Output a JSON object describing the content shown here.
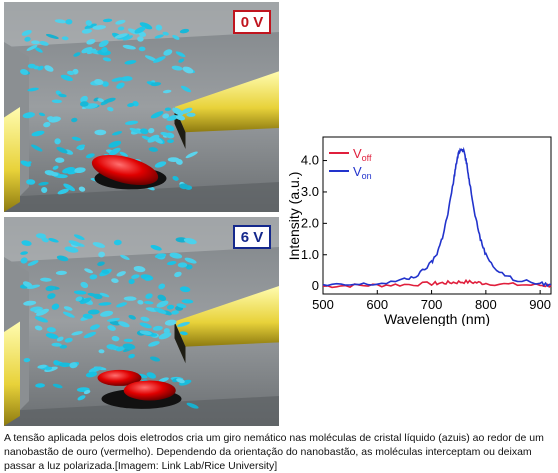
{
  "panels": [
    {
      "voltage_label": "0 V",
      "badge_color": "#c0141e"
    },
    {
      "voltage_label": "6 V",
      "badge_color": "#14288c"
    }
  ],
  "chart_data": {
    "type": "line",
    "xlabel": "Wavelength (nm)",
    "ylabel": "Intensity (a.u.)",
    "xlim": [
      500,
      920
    ],
    "ylim": [
      -0.25,
      4.75
    ],
    "xticks": [
      500,
      600,
      700,
      800,
      900
    ],
    "yticks": [
      0,
      1,
      2,
      3,
      4
    ],
    "ytick_labels": [
      "0",
      "1.0",
      "2.0",
      "3.0",
      "4.0"
    ],
    "legend_position": "top-left",
    "series": [
      {
        "name_base": "V",
        "name_sub": "off",
        "color": "#e01f3c",
        "x": [
          500,
          550,
          600,
          650,
          700,
          720,
          740,
          760,
          780,
          800,
          850,
          900,
          920
        ],
        "values": [
          0.0,
          0.02,
          0.03,
          0.05,
          0.08,
          0.1,
          0.12,
          0.14,
          0.12,
          0.09,
          0.05,
          0.03,
          0.02
        ]
      },
      {
        "name_base": "V",
        "name_sub": "on",
        "color": "#2233cc",
        "x": [
          500,
          550,
          600,
          650,
          675,
          700,
          710,
          720,
          730,
          740,
          745,
          750,
          755,
          760,
          765,
          770,
          780,
          790,
          800,
          820,
          850,
          900,
          920
        ],
        "values": [
          0.02,
          0.04,
          0.07,
          0.2,
          0.35,
          0.75,
          1.05,
          1.55,
          2.3,
          3.3,
          3.85,
          4.25,
          4.4,
          4.3,
          3.85,
          3.3,
          2.3,
          1.5,
          1.0,
          0.5,
          0.22,
          0.08,
          0.05
        ]
      }
    ]
  },
  "caption": "A tensão aplicada pelos dois eletrodos cria um giro nemático nas moléculas de cristal líquido (azuis) ao redor de um nanobastão de ouro (vermelho). Dependendo da orientação do nanobastão, as moléculas interceptam ou deixam passar a luz polarizada.[Imagem: Link Lab/Rice University]"
}
